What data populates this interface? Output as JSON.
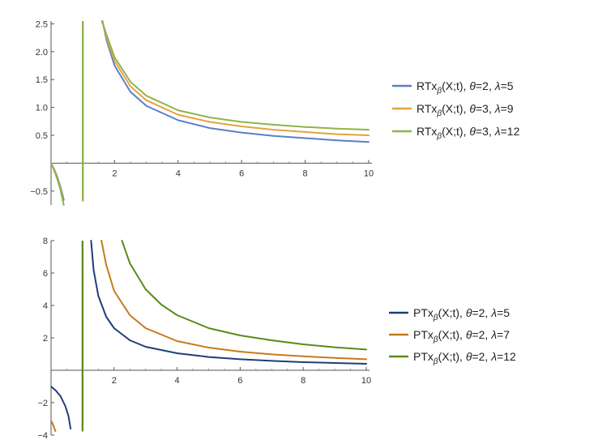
{
  "chart_data": [
    {
      "type": "line",
      "xlim": [
        0,
        10
      ],
      "ylim": [
        -0.75,
        2.55
      ],
      "x_ticks": [
        2,
        4,
        6,
        8,
        10
      ],
      "y_ticks": [
        -0.5,
        0.5,
        1.0,
        1.5,
        2.0,
        2.5
      ],
      "x_tick_labels": [
        "2",
        "4",
        "6",
        "8",
        "10"
      ],
      "y_tick_labels": [
        "−0.5",
        "0.5",
        "1.0",
        "1.5",
        "2.0",
        "2.5"
      ],
      "vertical_asymptote": 1,
      "legend_position": "right",
      "series": [
        {
          "name": "RTxβ(X;t), θ=2, λ=5",
          "legend": {
            "base": "RTx",
            "sub": "β",
            "args": "(X;t), ",
            "param1": "θ=2, ",
            "param2": "λ=5"
          },
          "color": "#5b7fc7",
          "left": [
            [
              0,
              0.0
            ],
            [
              0.1,
              -0.11
            ],
            [
              0.2,
              -0.25
            ],
            [
              0.3,
              -0.43
            ],
            [
              0.4,
              -0.66
            ]
          ],
          "right": [
            [
              1.62,
              2.55
            ],
            [
              1.75,
              2.2
            ],
            [
              2.0,
              1.75
            ],
            [
              2.5,
              1.28
            ],
            [
              3.0,
              1.03
            ],
            [
              4.0,
              0.77
            ],
            [
              5.0,
              0.63
            ],
            [
              6.0,
              0.55
            ],
            [
              7.0,
              0.49
            ],
            [
              8.0,
              0.45
            ],
            [
              9.0,
              0.41
            ],
            [
              10.0,
              0.38
            ]
          ]
        },
        {
          "name": "RTxβ(X;t), θ=3, λ=9",
          "legend": {
            "base": "RTx",
            "sub": "β",
            "args": "(X;t), ",
            "param1": "θ=3, ",
            "param2": "λ=9"
          },
          "color": "#e6a23c",
          "left": [
            [
              0,
              0.0
            ],
            [
              0.1,
              -0.12
            ],
            [
              0.2,
              -0.27
            ],
            [
              0.3,
              -0.46
            ],
            [
              0.38,
              -0.68
            ]
          ],
          "right": [
            [
              1.62,
              2.55
            ],
            [
              1.75,
              2.25
            ],
            [
              2.0,
              1.83
            ],
            [
              2.5,
              1.38
            ],
            [
              3.0,
              1.13
            ],
            [
              4.0,
              0.87
            ],
            [
              5.0,
              0.74
            ],
            [
              6.0,
              0.66
            ],
            [
              7.0,
              0.6
            ],
            [
              8.0,
              0.56
            ],
            [
              9.0,
              0.52
            ],
            [
              10.0,
              0.5
            ]
          ]
        },
        {
          "name": "RTxβ(X;t), θ=3, λ=12",
          "legend": {
            "base": "RTx",
            "sub": "β",
            "args": "(X;t), ",
            "param1": "θ=3, ",
            "param2": "λ=12"
          },
          "color": "#8db548",
          "left": [
            [
              0,
              0.0
            ],
            [
              0.1,
              -0.13
            ],
            [
              0.2,
              -0.29
            ],
            [
              0.3,
              -0.49
            ],
            [
              0.4,
              -0.75
            ]
          ],
          "right": [
            [
              1.6,
              2.55
            ],
            [
              1.75,
              2.3
            ],
            [
              2.0,
              1.9
            ],
            [
              2.5,
              1.46
            ],
            [
              3.0,
              1.21
            ],
            [
              4.0,
              0.95
            ],
            [
              5.0,
              0.82
            ],
            [
              6.0,
              0.74
            ],
            [
              7.0,
              0.69
            ],
            [
              8.0,
              0.65
            ],
            [
              9.0,
              0.62
            ],
            [
              10.0,
              0.6
            ]
          ]
        }
      ]
    },
    {
      "type": "line",
      "xlim": [
        0,
        10
      ],
      "ylim": [
        -4.0,
        8.0
      ],
      "x_ticks": [
        2,
        4,
        6,
        8,
        10
      ],
      "y_ticks": [
        -4,
        -2,
        2,
        4,
        6,
        8
      ],
      "x_tick_labels": [
        "2",
        "4",
        "6",
        "8",
        "10"
      ],
      "y_tick_labels": [
        "−4",
        "−2",
        "2",
        "4",
        "6",
        "8"
      ],
      "vertical_asymptote": 1,
      "legend_position": "right",
      "series": [
        {
          "name": "PTxβ(X;t), θ=2, λ=5",
          "legend": {
            "base": "PTx",
            "sub": "β",
            "args": "(X;t), ",
            "param1": "θ=2, ",
            "param2": "λ=5"
          },
          "color": "#1f3d7a",
          "left": [
            [
              0,
              -1.0
            ],
            [
              0.15,
              -1.25
            ],
            [
              0.3,
              -1.6
            ],
            [
              0.45,
              -2.2
            ],
            [
              0.55,
              -2.8
            ],
            [
              0.62,
              -3.6
            ]
          ],
          "right": [
            [
              1.27,
              8.0
            ],
            [
              1.35,
              6.2
            ],
            [
              1.5,
              4.6
            ],
            [
              1.75,
              3.3
            ],
            [
              2.0,
              2.6
            ],
            [
              2.5,
              1.85
            ],
            [
              3.0,
              1.45
            ],
            [
              4.0,
              1.05
            ],
            [
              5.0,
              0.82
            ],
            [
              6.0,
              0.68
            ],
            [
              7.0,
              0.58
            ],
            [
              8.0,
              0.5
            ],
            [
              9.0,
              0.45
            ],
            [
              10.0,
              0.4
            ]
          ]
        },
        {
          "name": "PTxβ(X;t), θ=2, λ=7",
          "legend": {
            "base": "PTx",
            "sub": "β",
            "args": "(X;t), ",
            "param1": "θ=2, ",
            "param2": "λ=7"
          },
          "color": "#c77a1a",
          "left": [
            [
              0,
              -3.1
            ],
            [
              0.05,
              -3.3
            ],
            [
              0.1,
              -3.55
            ],
            [
              0.14,
              -3.75
            ]
          ],
          "right": [
            [
              1.6,
              8.0
            ],
            [
              1.75,
              6.5
            ],
            [
              2.0,
              4.9
            ],
            [
              2.5,
              3.4
            ],
            [
              3.0,
              2.6
            ],
            [
              4.0,
              1.8
            ],
            [
              5.0,
              1.4
            ],
            [
              6.0,
              1.15
            ],
            [
              7.0,
              0.98
            ],
            [
              8.0,
              0.86
            ],
            [
              9.0,
              0.76
            ],
            [
              10.0,
              0.68
            ]
          ]
        },
        {
          "name": "PTxβ(X;t), θ=2, λ=12",
          "legend": {
            "base": "PTx",
            "sub": "β",
            "args": "(X;t), ",
            "param1": "θ=2, ",
            "param2": "λ=12"
          },
          "color": "#5a8a1a",
          "left": [],
          "right": [
            [
              2.25,
              8.0
            ],
            [
              2.5,
              6.6
            ],
            [
              3.0,
              5.0
            ],
            [
              3.5,
              4.05
            ],
            [
              4.0,
              3.4
            ],
            [
              5.0,
              2.6
            ],
            [
              6.0,
              2.15
            ],
            [
              7.0,
              1.85
            ],
            [
              8.0,
              1.6
            ],
            [
              9.0,
              1.42
            ],
            [
              10.0,
              1.28
            ]
          ]
        }
      ]
    }
  ]
}
